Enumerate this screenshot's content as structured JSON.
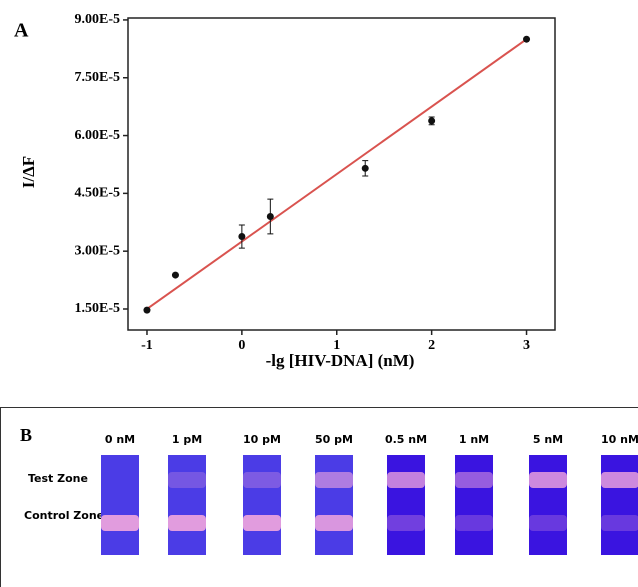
{
  "chart_data": {
    "type": "scatter",
    "panel_label": "A",
    "xlabel": "-lg [HIV-DNA] (nM)",
    "ylabel": "I/ΔF",
    "x": [
      -1,
      -0.7,
      0,
      0.3,
      1.3,
      2,
      3
    ],
    "values": [
      1.47e-05,
      2.38e-05,
      3.38e-05,
      3.9e-05,
      5.15e-05,
      6.38e-05,
      8.5e-05
    ],
    "errors": [
      null,
      null,
      3e-06,
      4.5e-06,
      2e-06,
      1e-06,
      null
    ],
    "color": "#111111",
    "fit": {
      "x": [
        -1,
        3
      ],
      "values": [
        1.5e-05,
        8.5e-05
      ],
      "color": "#d9534f"
    },
    "xlim": [
      -1.2,
      3.3
    ],
    "xticks": [
      -1,
      0,
      1,
      2,
      3
    ],
    "ylim": [
      9.55e-06,
      9.05e-05
    ],
    "yticks": [
      {
        "value": 1.5e-05,
        "label": "1.50E-5"
      },
      {
        "value": 3e-05,
        "label": "3.00E-5"
      },
      {
        "value": 4.5e-05,
        "label": "4.50E-5"
      },
      {
        "value": 6e-05,
        "label": "6.00E-5"
      },
      {
        "value": 7.5e-05,
        "label": "7.50E-5"
      },
      {
        "value": 9e-05,
        "label": "9.00E-5"
      }
    ]
  },
  "panel_b": {
    "label": "B",
    "row_labels": [
      "Test Zone",
      "Control Zone"
    ],
    "strips": [
      "0 nM",
      "1 pM",
      "10 pM",
      "50 pM",
      "0.5 nM",
      "1 nM",
      "5 nM",
      "10 nM"
    ]
  }
}
